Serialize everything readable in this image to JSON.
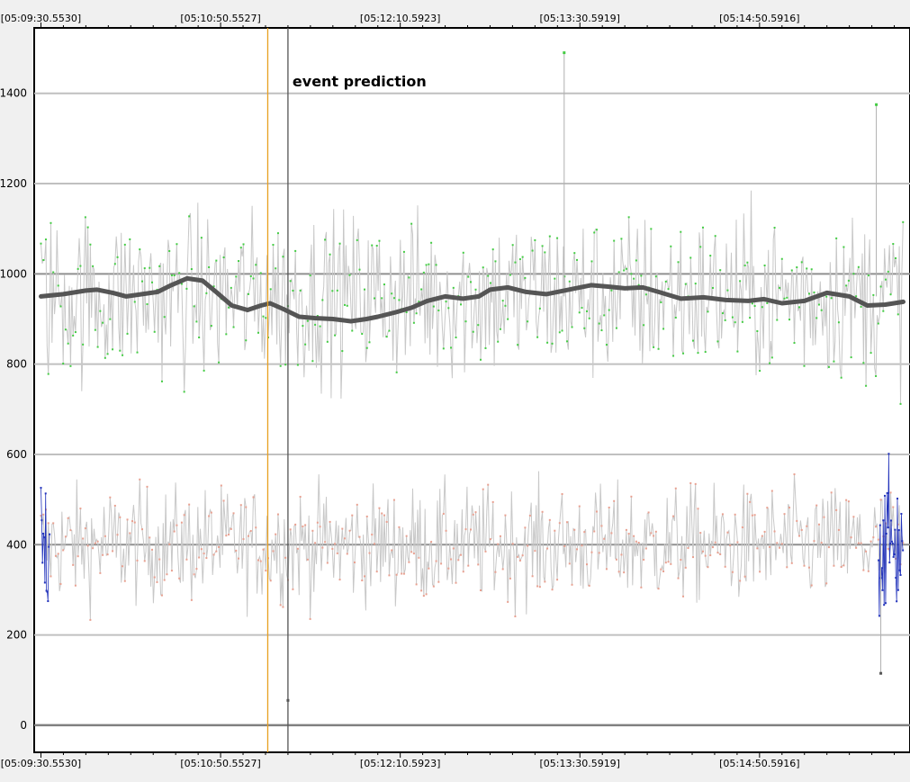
{
  "chart_data": {
    "type": "line",
    "title": "",
    "xlabel": "",
    "ylabel": "",
    "x_tick_labels": [
      "[05:09:30.5530]",
      "[05:10:50.5527]",
      "[05:12:10.5923]",
      "[05:13:30.5919]",
      "[05:14:50.5916]"
    ],
    "x_range_seconds": [
      -3,
      387
    ],
    "ylim": [
      -60,
      1545
    ],
    "y_ticks": [
      0,
      200,
      400,
      600,
      800,
      1000,
      1200,
      1400
    ],
    "grid": true,
    "legend": "none",
    "series": [
      {
        "role": "upper-signal-raw",
        "color": "#c8c8c8",
        "marker_color": "#44cc44",
        "mean_level": 950,
        "spread": 100,
        "x_span_seconds": [
          0,
          384
        ]
      },
      {
        "role": "upper-signal-smoothed",
        "color": "#555555",
        "x_seconds": [
          0,
          10,
          20,
          25,
          32,
          38,
          45,
          52,
          58,
          65,
          72,
          78,
          85,
          92,
          98,
          102,
          108,
          115,
          122,
          130,
          138,
          145,
          150,
          158,
          165,
          172,
          180,
          188,
          195,
          200,
          208,
          216,
          225,
          235,
          245,
          252,
          260,
          268,
          275,
          285,
          295,
          305,
          315,
          322,
          330,
          340,
          350,
          360,
          368,
          376,
          384
        ],
        "values": [
          950,
          955,
          963,
          965,
          958,
          950,
          955,
          960,
          975,
          990,
          985,
          960,
          930,
          920,
          930,
          935,
          922,
          905,
          902,
          900,
          895,
          900,
          905,
          915,
          925,
          940,
          950,
          945,
          950,
          965,
          970,
          960,
          955,
          965,
          975,
          972,
          968,
          970,
          960,
          945,
          948,
          942,
          940,
          944,
          935,
          940,
          958,
          950,
          930,
          932,
          938
        ]
      },
      {
        "role": "lower-signal-raw",
        "color": "#c8c8c8",
        "marker_color": "#e8a090",
        "mean_level": 400,
        "spread": 70,
        "x_span_seconds": [
          0,
          384
        ]
      },
      {
        "role": "lower-signal-highlight",
        "color": "#2233bb",
        "x_spans_seconds": [
          [
            0,
            4
          ],
          [
            373,
            384
          ]
        ]
      }
    ],
    "vertical_markers": [
      {
        "role": "orange-marker",
        "x_seconds": 101,
        "color": "#e8a020"
      },
      {
        "role": "event-marker",
        "x_seconds": 110,
        "color": "#555555"
      }
    ],
    "annotations": [
      {
        "text": "event prediction",
        "x_seconds": 112,
        "y": 1415
      }
    ],
    "outliers": [
      {
        "x_seconds": 233,
        "y": 1490
      },
      {
        "x_seconds": 372,
        "y": 1375
      },
      {
        "x_seconds": 374,
        "y": 115
      },
      {
        "x_seconds": 110,
        "y": 55
      }
    ],
    "colors": {
      "background": "#f0f0f0",
      "plot_background": "#ffffff",
      "gridline": "#c0c0c0",
      "gridline_major": "#909090",
      "axis": "#000000",
      "text": "#000000"
    }
  }
}
